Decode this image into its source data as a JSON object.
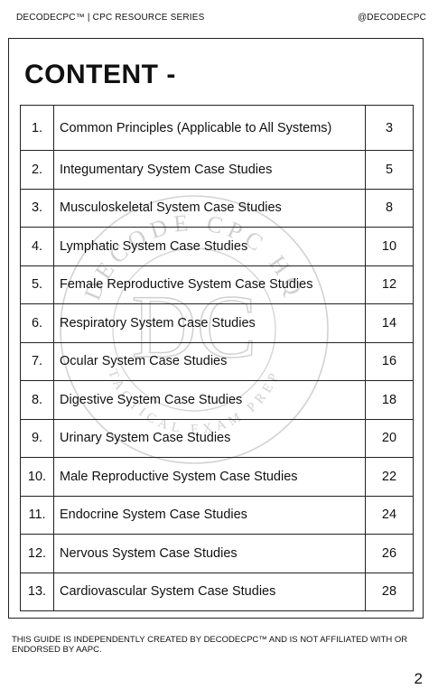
{
  "header": {
    "series": "DECODECPC™ | CPC RESOURCE SERIES",
    "handle": "@DECODECPC"
  },
  "title": "CONTENT -",
  "toc": [
    {
      "num": "1.",
      "label": "Common Principles (Applicable to All Systems)",
      "page": "3"
    },
    {
      "num": "2.",
      "label": "Integumentary System Case Studies",
      "page": "5"
    },
    {
      "num": "3.",
      "label": "Musculoskeletal System Case Studies",
      "page": "8"
    },
    {
      "num": "4.",
      "label": "Lymphatic System Case Studies",
      "page": "10"
    },
    {
      "num": "5.",
      "label": "Female Reproductive System Case Studies",
      "page": "12"
    },
    {
      "num": "6.",
      "label": "Respiratory System Case Studies",
      "page": "14"
    },
    {
      "num": "7.",
      "label": "Ocular System Case Studies",
      "page": "16"
    },
    {
      "num": "8.",
      "label": "Digestive System Case Studies",
      "page": "18"
    },
    {
      "num": "9.",
      "label": "Urinary System Case Studies",
      "page": "20"
    },
    {
      "num": "10.",
      "label": "Male Reproductive System Case Studies",
      "page": "22"
    },
    {
      "num": "11.",
      "label": "Endocrine System Case Studies",
      "page": "24"
    },
    {
      "num": "12.",
      "label": "Nervous System Case Studies",
      "page": "26"
    },
    {
      "num": "13.",
      "label": "Cardiovascular System Case Studies",
      "page": "28"
    }
  ],
  "watermark": {
    "top_text": "DECODE CPC HQ",
    "monogram": "DC",
    "bottom_text": "TACTICAL EXAM PREP",
    "color": "#cfcfcf"
  },
  "disclaimer": "THIS GUIDE IS INDEPENDENTLY CREATED BY DECODECPC™ AND IS NOT AFFILIATED WITH OR ENDORSED BY AAPC.",
  "page_number": "2"
}
